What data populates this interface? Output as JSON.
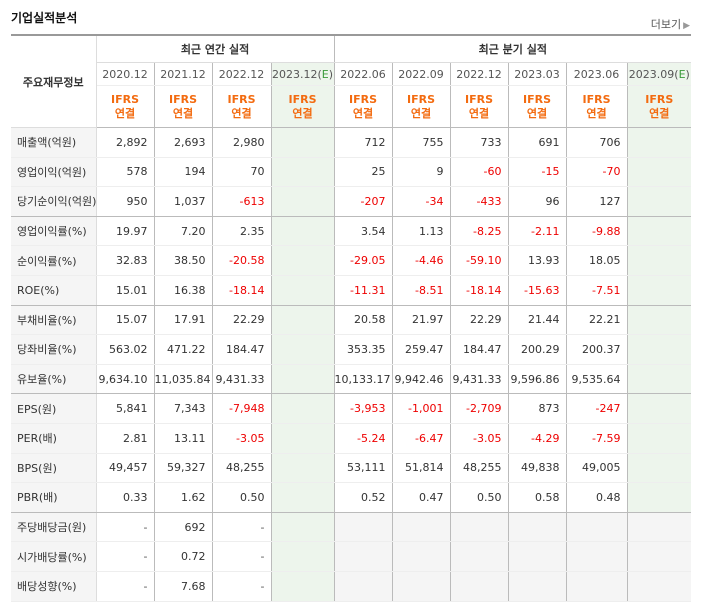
{
  "title": "기업실적분석",
  "more_label": "더보기",
  "header": {
    "row_label": "주요재무정보",
    "annual_group": "최근 연간 실적",
    "quarter_group": "최근 분기 실적",
    "annual_periods": [
      "2020.12",
      "2021.12",
      "2022.12",
      "2023.12(E)"
    ],
    "quarter_periods": [
      "2022.06",
      "2022.09",
      "2022.12",
      "2023.03",
      "2023.06",
      "2023.09(E)"
    ],
    "ifrs": "IFRS",
    "consolidated": "연결"
  },
  "rows": [
    {
      "label": "매출액(억원)",
      "annual": [
        "2,892",
        "2,693",
        "2,980",
        ""
      ],
      "quarter": [
        "712",
        "755",
        "733",
        "691",
        "706",
        ""
      ]
    },
    {
      "label": "영업이익(억원)",
      "annual": [
        "578",
        "194",
        "70",
        ""
      ],
      "quarter": [
        "25",
        "9",
        "-60",
        "-15",
        "-70",
        ""
      ]
    },
    {
      "label": "당기순이익(억원)",
      "annual": [
        "950",
        "1,037",
        "-613",
        ""
      ],
      "quarter": [
        "-207",
        "-34",
        "-433",
        "96",
        "127",
        ""
      ]
    },
    {
      "label": "영업이익률(%)",
      "annual": [
        "19.97",
        "7.20",
        "2.35",
        ""
      ],
      "quarter": [
        "3.54",
        "1.13",
        "-8.25",
        "-2.11",
        "-9.88",
        ""
      ]
    },
    {
      "label": "순이익률(%)",
      "annual": [
        "32.83",
        "38.50",
        "-20.58",
        ""
      ],
      "quarter": [
        "-29.05",
        "-4.46",
        "-59.10",
        "13.93",
        "18.05",
        ""
      ]
    },
    {
      "label": "ROE(%)",
      "annual": [
        "15.01",
        "16.38",
        "-18.14",
        ""
      ],
      "quarter": [
        "-11.31",
        "-8.51",
        "-18.14",
        "-15.63",
        "-7.51",
        ""
      ]
    },
    {
      "label": "부채비율(%)",
      "annual": [
        "15.07",
        "17.91",
        "22.29",
        ""
      ],
      "quarter": [
        "20.58",
        "21.97",
        "22.29",
        "21.44",
        "22.21",
        ""
      ]
    },
    {
      "label": "당좌비율(%)",
      "annual": [
        "563.02",
        "471.22",
        "184.47",
        ""
      ],
      "quarter": [
        "353.35",
        "259.47",
        "184.47",
        "200.29",
        "200.37",
        ""
      ]
    },
    {
      "label": "유보율(%)",
      "annual": [
        "9,634.10",
        "11,035.84",
        "9,431.33",
        ""
      ],
      "quarter": [
        "10,133.17",
        "9,942.46",
        "9,431.33",
        "9,596.86",
        "9,535.64",
        ""
      ]
    },
    {
      "label": "EPS(원)",
      "annual": [
        "5,841",
        "7,343",
        "-7,948",
        ""
      ],
      "quarter": [
        "-3,953",
        "-1,001",
        "-2,709",
        "873",
        "-247",
        ""
      ]
    },
    {
      "label": "PER(배)",
      "annual": [
        "2.81",
        "13.11",
        "-3.05",
        ""
      ],
      "quarter": [
        "-5.24",
        "-6.47",
        "-3.05",
        "-4.29",
        "-7.59",
        ""
      ]
    },
    {
      "label": "BPS(원)",
      "annual": [
        "49,457",
        "59,327",
        "48,255",
        ""
      ],
      "quarter": [
        "53,111",
        "51,814",
        "48,255",
        "49,838",
        "49,005",
        ""
      ]
    },
    {
      "label": "PBR(배)",
      "annual": [
        "0.33",
        "1.62",
        "0.50",
        ""
      ],
      "quarter": [
        "0.52",
        "0.47",
        "0.50",
        "0.58",
        "0.48",
        ""
      ]
    },
    {
      "label": "주당배당금(원)",
      "annual": [
        "-",
        "692",
        "-",
        ""
      ],
      "quarter": null
    },
    {
      "label": "시가배당률(%)",
      "annual": [
        "-",
        "0.72",
        "-",
        ""
      ],
      "quarter": null
    },
    {
      "label": "배당성향(%)",
      "annual": [
        "-",
        "7.68",
        "-",
        ""
      ],
      "quarter": null
    }
  ],
  "colors": {
    "ifrs": "#f36b10",
    "negative": "#e00000",
    "estimate_bg": "#edf5ec",
    "estimate_mark": "#3a9a3a"
  }
}
